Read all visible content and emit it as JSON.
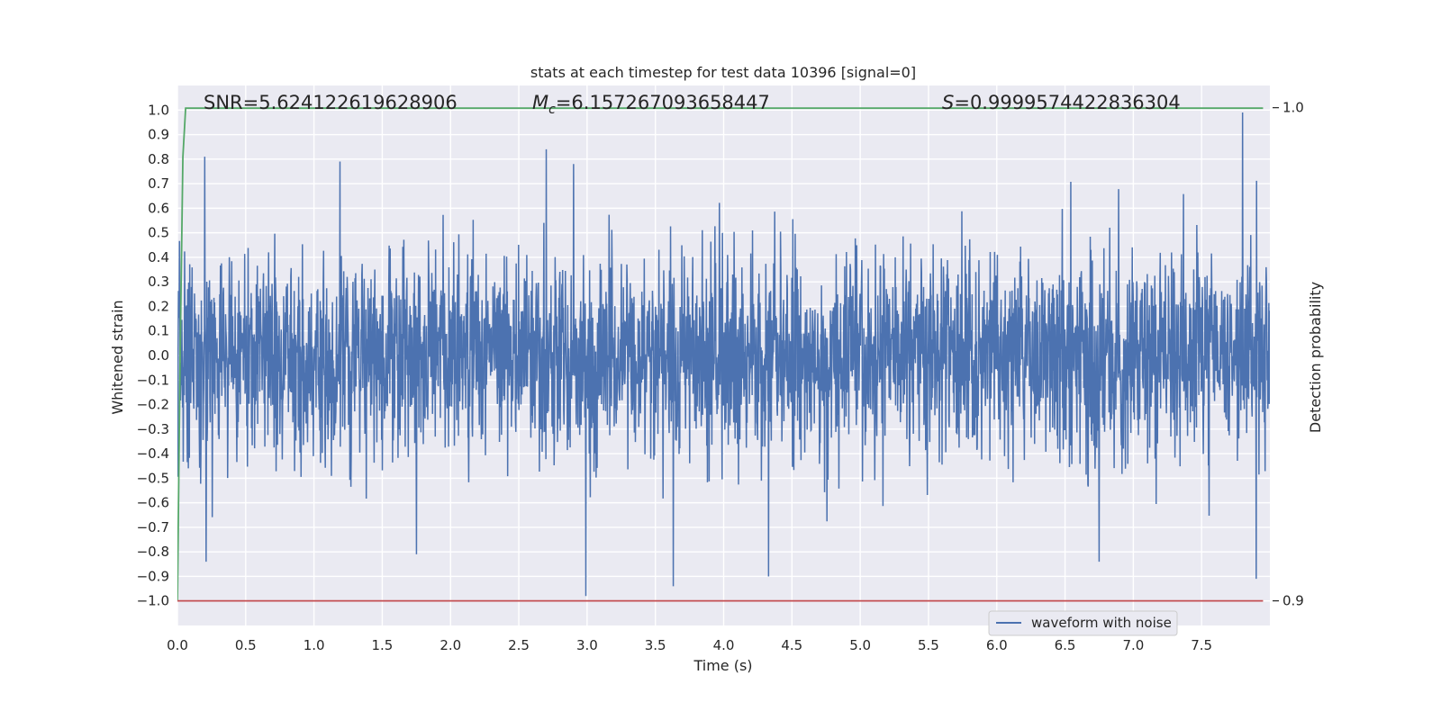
{
  "chart_data": {
    "type": "line",
    "title": "stats at each timestep for test data 10396 [signal=0]",
    "xlabel": "Time (s)",
    "ylabel": "Whitened strain",
    "y2label": "Detection probability",
    "xlim": [
      0,
      8.0
    ],
    "ylim": [
      -1.1,
      1.1
    ],
    "y2lim": [
      0.895,
      1.0045
    ],
    "xticks": [
      "0.0",
      "0.5",
      "1.0",
      "1.5",
      "2.0",
      "2.5",
      "3.0",
      "3.5",
      "4.0",
      "4.5",
      "5.0",
      "5.5",
      "6.0",
      "6.5",
      "7.0",
      "7.5"
    ],
    "yticks": [
      "1.0",
      "0.9",
      "0.8",
      "0.7",
      "0.6",
      "0.5",
      "0.4",
      "0.3",
      "0.2",
      "0.1",
      "0.0",
      "−0.1",
      "−0.2",
      "−0.3",
      "−0.4",
      "−0.5",
      "−0.6",
      "−0.7",
      "−0.8",
      "−0.9",
      "−1.0"
    ],
    "y2ticks": [
      "1.0",
      "0.9"
    ],
    "grid": true,
    "legend": {
      "placement": "bottom-right",
      "entries": [
        "waveform with noise"
      ]
    },
    "annotations": {
      "snr": "SNR=5.624122619628906",
      "mc_symbol": "M",
      "mc_sub": "c",
      "mc_value": "=6.157267093658447",
      "s_symbol": "S",
      "s_value": "=0.9999574422836304"
    },
    "series": [
      {
        "name": "waveform with noise",
        "color": "#4c72b0",
        "axis": "left",
        "noise_std": 0.2,
        "sample_count": 3200,
        "noted_extremes": [
          {
            "x": 0.2,
            "y": 0.81
          },
          {
            "x": 0.21,
            "y": -0.84
          },
          {
            "x": 1.19,
            "y": 0.79
          },
          {
            "x": 2.7,
            "y": 0.84
          },
          {
            "x": 2.99,
            "y": -0.98
          },
          {
            "x": 3.63,
            "y": -0.94
          },
          {
            "x": 4.33,
            "y": -0.9
          },
          {
            "x": 6.75,
            "y": -0.84
          },
          {
            "x": 7.8,
            "y": 0.99
          },
          {
            "x": 7.9,
            "y": -0.91
          },
          {
            "x": 1.75,
            "y": -0.81
          },
          {
            "x": 2.9,
            "y": 0.78
          }
        ]
      },
      {
        "name": "",
        "color": "#55a868",
        "axis": "right",
        "x": [
          0.0,
          0.02,
          0.04,
          0.06,
          7.95
        ],
        "y": [
          0.9,
          0.95,
          0.99,
          0.9999,
          0.9999
        ]
      },
      {
        "name": "",
        "color": "#c44e52",
        "axis": "right",
        "x": [
          0.0,
          7.95
        ],
        "y": [
          0.9,
          0.9
        ]
      }
    ]
  }
}
